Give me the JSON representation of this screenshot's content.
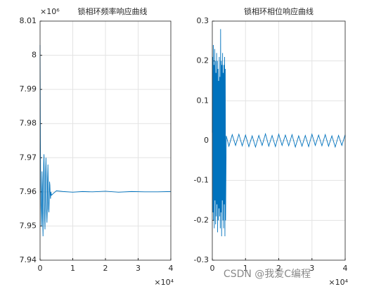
{
  "chart_data": [
    {
      "type": "line",
      "title": "锁相环频率响应曲线",
      "y_exponent": "×10⁶",
      "x_exponent": "×10⁴",
      "xlim": [
        0,
        4
      ],
      "xticks": [
        0,
        1,
        2,
        3,
        4
      ],
      "ylim": [
        7.94,
        8.01
      ],
      "yticks": [
        7.94,
        7.95,
        7.96,
        7.97,
        7.98,
        7.99,
        8,
        8.01
      ],
      "grid": true,
      "series": [
        {
          "color": "#0072bd",
          "x": [
            0,
            0.005,
            0.01,
            0.02,
            0.03,
            0.04,
            0.05,
            0.06,
            0.07,
            0.08,
            0.09,
            0.1,
            0.11,
            0.12,
            0.13,
            0.14,
            0.15,
            0.16,
            0.17,
            0.18,
            0.19,
            0.2,
            0.21,
            0.22,
            0.23,
            0.24,
            0.25,
            0.26,
            0.27,
            0.28,
            0.29,
            0.3,
            0.31,
            0.32,
            0.33,
            0.35,
            0.4,
            0.5,
            0.7,
            1.0,
            1.3,
            1.6,
            2.0,
            2.4,
            2.8,
            3.2,
            3.6,
            4.0
          ],
          "values": [
            8.003,
            7.99,
            7.975,
            7.962,
            7.955,
            7.95,
            7.958,
            7.966,
            7.962,
            7.952,
            7.947,
            7.956,
            7.968,
            7.971,
            7.962,
            7.952,
            7.949,
            7.957,
            7.966,
            7.97,
            7.963,
            7.954,
            7.951,
            7.955,
            7.964,
            7.968,
            7.962,
            7.955,
            7.954,
            7.958,
            7.963,
            7.962,
            7.959,
            7.958,
            7.96,
            7.959,
            7.9595,
            7.9603,
            7.9601,
            7.9599,
            7.9601,
            7.96,
            7.9602,
            7.9599,
            7.9601,
            7.96,
            7.96,
            7.9601
          ]
        }
      ]
    },
    {
      "type": "line",
      "title": "锁相环相位响应曲线",
      "x_exponent": "×10⁴",
      "xlim": [
        0,
        4
      ],
      "xticks": [
        0,
        1,
        2,
        3,
        4
      ],
      "ylim": [
        -0.3,
        0.3
      ],
      "yticks": [
        -0.3,
        -0.2,
        -0.1,
        0,
        0.1,
        0.2,
        0.3
      ],
      "grid": true,
      "series": [
        {
          "color": "#0072bd",
          "x": [
            0,
            0.01,
            0.02,
            0.03,
            0.04,
            0.05,
            0.06,
            0.07,
            0.08,
            0.09,
            0.1,
            0.11,
            0.12,
            0.13,
            0.14,
            0.15,
            0.16,
            0.17,
            0.18,
            0.19,
            0.2,
            0.21,
            0.22,
            0.23,
            0.24,
            0.25,
            0.26,
            0.27,
            0.28,
            0.29,
            0.3,
            0.31,
            0.32,
            0.33,
            0.34,
            0.35,
            0.36,
            0.37,
            0.38,
            0.39,
            0.4,
            0.42,
            0.5,
            0.6,
            0.7,
            0.8,
            0.9,
            1.0,
            1.1,
            1.2,
            1.3,
            1.4,
            1.5,
            1.6,
            1.7,
            1.8,
            1.9,
            2.0,
            2.1,
            2.2,
            2.3,
            2.4,
            2.5,
            2.6,
            2.7,
            2.8,
            2.9,
            3.0,
            3.1,
            3.2,
            3.3,
            3.4,
            3.5,
            3.6,
            3.7,
            3.8,
            3.9,
            4.0
          ],
          "values": [
            0.02,
            0.21,
            -0.18,
            0.24,
            -0.2,
            0.19,
            -0.22,
            0.23,
            -0.15,
            0.2,
            -0.21,
            0.17,
            -0.19,
            0.22,
            -0.16,
            0.2,
            -0.23,
            0.18,
            -0.2,
            0.15,
            -0.17,
            0.21,
            -0.19,
            0.16,
            -0.22,
            0.28,
            -0.18,
            0.2,
            -0.24,
            0.19,
            -0.15,
            0.22,
            -0.2,
            0.17,
            -0.22,
            0.19,
            -0.16,
            0.21,
            -0.24,
            0.18,
            -0.2,
            0.012,
            -0.014,
            0.015,
            -0.012,
            0.016,
            -0.013,
            0.014,
            -0.015,
            0.012,
            -0.016,
            0.013,
            -0.012,
            0.017,
            -0.014,
            0.013,
            -0.015,
            0.016,
            -0.012,
            0.014,
            -0.013,
            0.015,
            -0.016,
            0.012,
            -0.014,
            0.013,
            -0.015,
            0.016,
            -0.012,
            0.014,
            -0.013,
            0.015,
            -0.014,
            0.012,
            -0.016,
            0.013,
            -0.012,
            0.015
          ]
        }
      ]
    }
  ],
  "watermark": "CSDN @我爱C编程"
}
